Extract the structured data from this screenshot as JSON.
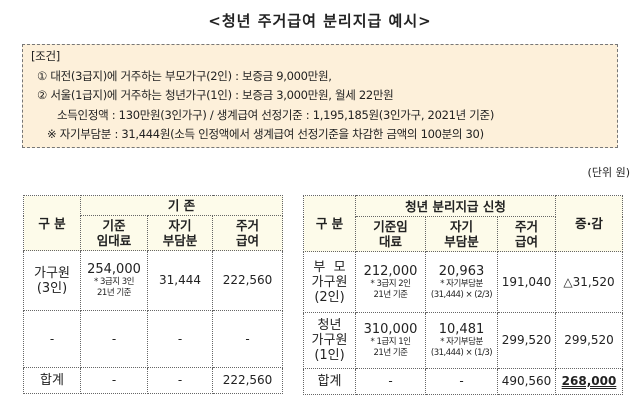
{
  "title": "<청년 주거급여 분리지급 예시>",
  "conditions": {
    "heading": "[조건]",
    "lines": [
      "① 대전(3급지)에 거주하는 부모가구(2인) : 보증금 9,000만원,",
      "② 서울(1급지)에 거주하는 청년가구(1인) : 보증금 3,000만원, 월세 22만원",
      "소득인정액 : 130만원(3인가구)  / 생계급여 선정기준 : 1,195,185원(3인가구, 2021년 기준)",
      "※ 자기부담분 : 31,444원(소득 인정액에서 생계급여 선정기준을 차감한 금액의 100분의 30)"
    ]
  },
  "unit": "(단위 원)",
  "left": {
    "group": "기 존",
    "col0": "구 분",
    "cols": [
      "기준\n임대료",
      "자기\n부담분",
      "주거\n급여"
    ],
    "rows": [
      {
        "label": "가구원\n(3인)",
        "rent": "254,000",
        "rent_note": "* 3급지 3인\n21년 기준",
        "self": "31,444",
        "benefit": "222,560"
      },
      {
        "label": "-",
        "rent": "-",
        "self": "-",
        "benefit": "-"
      },
      {
        "label": "합계",
        "rent": "-",
        "self": "-",
        "benefit": "222,560"
      }
    ]
  },
  "right": {
    "group": "청년 분리지급 신청",
    "col0": "구 분",
    "cols": [
      "기준임\n대료",
      "자기\n부담분",
      "주거\n급여"
    ],
    "diff": "증·감",
    "rows": [
      {
        "label": "부  모\n가구원\n(2인)",
        "rent": "212,000",
        "rent_note": "* 3급지 2인\n21년 기준",
        "self": "20,963",
        "self_note": "* 자기부담분\n(31,444) × (2/3)",
        "benefit": "191,040",
        "diff": "△31,520"
      },
      {
        "label": "청년\n가구원\n(1인)",
        "rent": "310,000",
        "rent_note": "* 1급지 1인\n21년 기준",
        "self": "10,481",
        "self_note": "* 자기부담분\n(31,444) × (1/3)",
        "benefit": "299,520",
        "diff": "299,520"
      },
      {
        "label": "합계",
        "rent": "-",
        "self": "-",
        "benefit": "490,560",
        "diff": "268,000"
      }
    ]
  }
}
